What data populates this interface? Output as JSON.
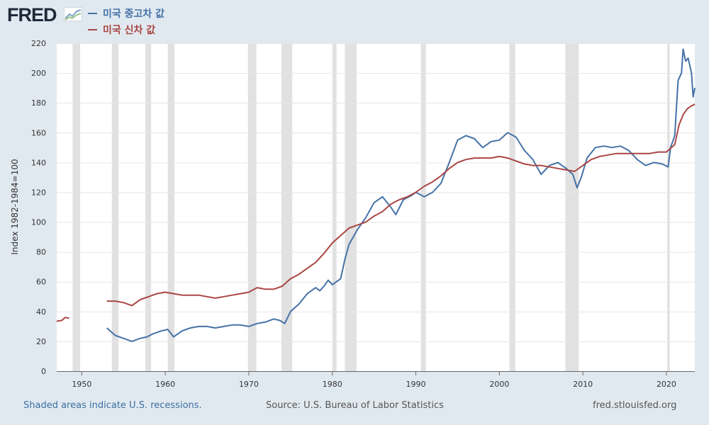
{
  "logo": {
    "text": "FRED"
  },
  "colors": {
    "series_0": "#4572a7",
    "series_1": "#aa4643",
    "recession": "#e1e1e1",
    "note": "#3b6fa0"
  },
  "footer": {
    "note": "Shaded areas indicate U.S. recessions.",
    "source": "Source: U.S. Bureau of Labor Statistics",
    "site": "fred.stlouisfed.org"
  },
  "chart_data": {
    "type": "line",
    "title": "",
    "xlabel": "",
    "ylabel": "Index 1982-1984=100",
    "xlim": [
      1947,
      2023.4
    ],
    "ylim": [
      0,
      220
    ],
    "x_ticks": [
      1950,
      1960,
      1970,
      1980,
      1990,
      2000,
      2010,
      2020
    ],
    "y_ticks": [
      0,
      20,
      40,
      60,
      80,
      100,
      120,
      140,
      160,
      180,
      200,
      220
    ],
    "grid": "horizontal",
    "legend": "top-left",
    "recessions": [
      [
        1948.9,
        1949.8
      ],
      [
        1953.6,
        1954.4
      ],
      [
        1957.6,
        1958.3
      ],
      [
        1960.3,
        1961.1
      ],
      [
        1969.9,
        1970.9
      ],
      [
        1973.9,
        1975.2
      ],
      [
        1980.0,
        1980.5
      ],
      [
        1981.5,
        1982.9
      ],
      [
        1990.6,
        1991.2
      ],
      [
        2001.2,
        2001.9
      ],
      [
        2007.9,
        2009.5
      ],
      [
        2020.1,
        2020.4
      ]
    ],
    "series": [
      {
        "name": "미국 중고차 값",
        "color": "#4572a7",
        "points": [
          [
            1953.0,
            29
          ],
          [
            1954.0,
            24
          ],
          [
            1955.0,
            22
          ],
          [
            1956.0,
            20
          ],
          [
            1957.0,
            22
          ],
          [
            1957.8,
            23
          ],
          [
            1958.5,
            25
          ],
          [
            1959.5,
            27
          ],
          [
            1960.3,
            28
          ],
          [
            1961.0,
            23
          ],
          [
            1962.0,
            27
          ],
          [
            1963.0,
            29
          ],
          [
            1964.0,
            30
          ],
          [
            1965.0,
            30
          ],
          [
            1966.0,
            29
          ],
          [
            1967.0,
            30
          ],
          [
            1968.0,
            31
          ],
          [
            1969.0,
            31
          ],
          [
            1970.0,
            30
          ],
          [
            1971.0,
            32
          ],
          [
            1972.0,
            33
          ],
          [
            1973.0,
            35
          ],
          [
            1973.7,
            34
          ],
          [
            1974.3,
            32
          ],
          [
            1975.0,
            40
          ],
          [
            1976.0,
            45
          ],
          [
            1977.0,
            52
          ],
          [
            1978.0,
            56
          ],
          [
            1978.5,
            54
          ],
          [
            1979.0,
            57
          ],
          [
            1979.5,
            61
          ],
          [
            1980.0,
            58
          ],
          [
            1980.5,
            60
          ],
          [
            1981.0,
            62
          ],
          [
            1981.5,
            75
          ],
          [
            1982.0,
            85
          ],
          [
            1983.0,
            95
          ],
          [
            1984.0,
            103
          ],
          [
            1985.0,
            113
          ],
          [
            1986.0,
            117
          ],
          [
            1987.0,
            110
          ],
          [
            1987.6,
            105
          ],
          [
            1988.5,
            115
          ],
          [
            1989.5,
            118
          ],
          [
            1990.0,
            120
          ],
          [
            1991.0,
            117
          ],
          [
            1992.0,
            120
          ],
          [
            1993.0,
            126
          ],
          [
            1994.0,
            140
          ],
          [
            1995.0,
            155
          ],
          [
            1996.0,
            158
          ],
          [
            1997.0,
            156
          ],
          [
            1998.0,
            150
          ],
          [
            1999.0,
            154
          ],
          [
            2000.0,
            155
          ],
          [
            2001.0,
            160
          ],
          [
            2002.0,
            157
          ],
          [
            2003.0,
            148
          ],
          [
            2004.0,
            142
          ],
          [
            2005.0,
            132
          ],
          [
            2006.0,
            138
          ],
          [
            2007.0,
            140
          ],
          [
            2008.0,
            136
          ],
          [
            2008.8,
            132
          ],
          [
            2009.3,
            123
          ],
          [
            2009.8,
            130
          ],
          [
            2010.5,
            143
          ],
          [
            2011.5,
            150
          ],
          [
            2012.5,
            151
          ],
          [
            2013.5,
            150
          ],
          [
            2014.5,
            151
          ],
          [
            2015.5,
            148
          ],
          [
            2016.5,
            142
          ],
          [
            2017.5,
            138
          ],
          [
            2018.5,
            140
          ],
          [
            2019.5,
            139
          ],
          [
            2020.2,
            137
          ],
          [
            2020.5,
            150
          ],
          [
            2021.0,
            158
          ],
          [
            2021.4,
            195
          ],
          [
            2021.8,
            200
          ],
          [
            2022.0,
            216
          ],
          [
            2022.3,
            208
          ],
          [
            2022.6,
            210
          ],
          [
            2023.0,
            200
          ],
          [
            2023.2,
            184
          ],
          [
            2023.4,
            190
          ]
        ]
      },
      {
        "name": "미국 신차 값",
        "color": "#aa4643",
        "points": [
          [
            1947.0,
            33.5
          ],
          [
            1947.6,
            34
          ],
          [
            1948.0,
            36
          ],
          [
            1948.5,
            35.5
          ],
          [
            1953.0,
            47
          ],
          [
            1954.0,
            47
          ],
          [
            1955.0,
            46
          ],
          [
            1956.0,
            44
          ],
          [
            1957.0,
            48
          ],
          [
            1958.0,
            50
          ],
          [
            1959.0,
            52
          ],
          [
            1960.0,
            53
          ],
          [
            1961.0,
            52
          ],
          [
            1962.0,
            51
          ],
          [
            1963.0,
            51
          ],
          [
            1964.0,
            51
          ],
          [
            1965.0,
            50
          ],
          [
            1966.0,
            49
          ],
          [
            1967.0,
            50
          ],
          [
            1968.0,
            51
          ],
          [
            1969.0,
            52
          ],
          [
            1970.0,
            53
          ],
          [
            1971.0,
            56
          ],
          [
            1972.0,
            55
          ],
          [
            1973.0,
            55
          ],
          [
            1974.0,
            57
          ],
          [
            1975.0,
            62
          ],
          [
            1976.0,
            65
          ],
          [
            1977.0,
            69
          ],
          [
            1978.0,
            73
          ],
          [
            1979.0,
            79
          ],
          [
            1980.0,
            86
          ],
          [
            1981.0,
            91
          ],
          [
            1982.0,
            96
          ],
          [
            1983.0,
            98
          ],
          [
            1984.0,
            100
          ],
          [
            1985.0,
            104
          ],
          [
            1986.0,
            107
          ],
          [
            1987.0,
            112
          ],
          [
            1988.0,
            115
          ],
          [
            1989.0,
            117
          ],
          [
            1990.0,
            120
          ],
          [
            1991.0,
            124
          ],
          [
            1992.0,
            127
          ],
          [
            1993.0,
            131
          ],
          [
            1994.0,
            136
          ],
          [
            1995.0,
            140
          ],
          [
            1996.0,
            142
          ],
          [
            1997.0,
            143
          ],
          [
            1998.0,
            143
          ],
          [
            1999.0,
            143
          ],
          [
            2000.0,
            144
          ],
          [
            2001.0,
            143
          ],
          [
            2002.0,
            141
          ],
          [
            2003.0,
            139
          ],
          [
            2004.0,
            138
          ],
          [
            2005.0,
            138
          ],
          [
            2006.0,
            137
          ],
          [
            2007.0,
            136
          ],
          [
            2008.0,
            135
          ],
          [
            2009.0,
            134
          ],
          [
            2010.0,
            138
          ],
          [
            2011.0,
            142
          ],
          [
            2012.0,
            144
          ],
          [
            2013.0,
            145
          ],
          [
            2014.0,
            146
          ],
          [
            2015.0,
            146
          ],
          [
            2016.0,
            146
          ],
          [
            2017.0,
            146
          ],
          [
            2018.0,
            146
          ],
          [
            2019.0,
            147
          ],
          [
            2020.0,
            147
          ],
          [
            2021.0,
            152
          ],
          [
            2021.5,
            165
          ],
          [
            2022.0,
            172
          ],
          [
            2022.5,
            176
          ],
          [
            2023.0,
            178
          ],
          [
            2023.4,
            179
          ]
        ]
      }
    ]
  }
}
